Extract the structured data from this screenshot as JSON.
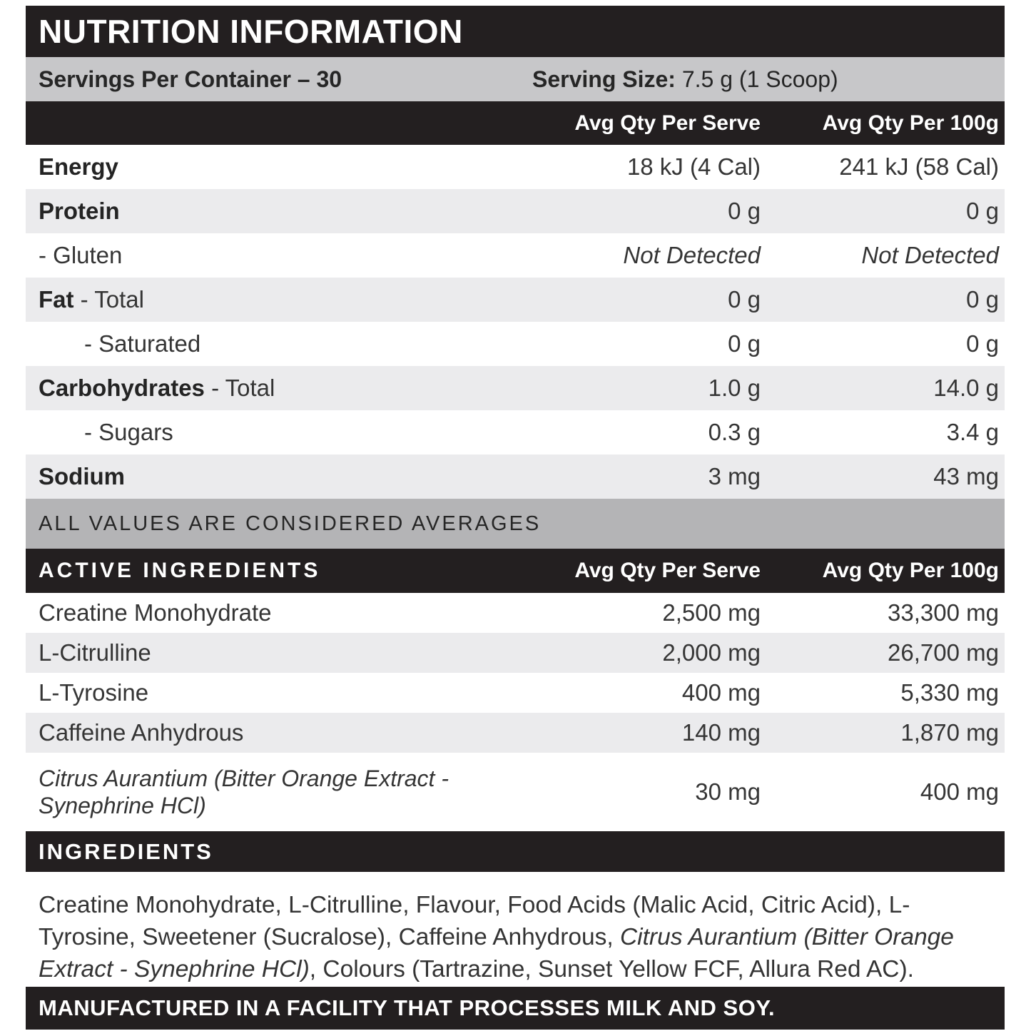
{
  "label": {
    "title": "NUTRITION INFORMATION",
    "servings_per_container": "Servings Per Container – 30",
    "serving_size_label": "Serving Size:",
    "serving_size_value": " 7.5 g (1 Scoop)",
    "columns": {
      "per_serve": "Avg Qty Per Serve",
      "per_100g": "Avg Qty Per 100g"
    },
    "nutrition_rows": [
      {
        "bold": "Energy",
        "light": "",
        "serve": "18 kJ (4 Cal)",
        "per100": "241 kJ (58 Cal)"
      },
      {
        "bold": "Protein",
        "light": "",
        "serve": "0 g",
        "per100": "0 g"
      },
      {
        "bold": "",
        "light": "- Gluten",
        "serve": "Not Detected",
        "per100": "Not Detected"
      },
      {
        "bold": "Fat",
        "light": " - Total",
        "serve": "0 g",
        "per100": "0 g"
      },
      {
        "bold": "",
        "light": "- Saturated",
        "serve": "0 g",
        "per100": "0 g"
      },
      {
        "bold": "Carbohydrates",
        "light": " - Total",
        "serve": "1.0 g",
        "per100": "14.0 g"
      },
      {
        "bold": "",
        "light": "- Sugars",
        "serve": "0.3 g",
        "per100": "3.4 g"
      },
      {
        "bold": "Sodium",
        "light": "",
        "serve": "3 mg",
        "per100": "43 mg"
      }
    ],
    "averages_note": "ALL VALUES ARE CONSIDERED AVERAGES",
    "active_section_title": "ACTIVE INGREDIENTS",
    "active_rows": [
      {
        "name": "Creatine Monohydrate",
        "serve": "2,500 mg",
        "per100": "33,300 mg"
      },
      {
        "name": "L-Citrulline",
        "serve": "2,000 mg",
        "per100": "26,700 mg"
      },
      {
        "name": "L-Tyrosine",
        "serve": "400 mg",
        "per100": "5,330 mg"
      },
      {
        "name": "Caffeine Anhydrous",
        "serve": "140 mg",
        "per100": "1,870 mg"
      },
      {
        "name": "Citrus Aurantium (Bitter Orange Extract - Synephrine HCl)",
        "serve": "30 mg",
        "per100": "400 mg"
      }
    ],
    "ingredients_section_title": "INGREDIENTS",
    "ingredients_text": {
      "part1": "Creatine Monohydrate, L-Citrulline, Flavour, Food Acids (Malic Acid, Citric Acid), L-Tyrosine, Sweetener (Sucralose), Caffeine Anhydrous, ",
      "italic_part": "Citrus Aurantium (Bitter Orange Extract - Synephrine HCl)",
      "part2": ", Colours (Tartrazine, Sunset Yellow FCF, Allura Red AC)."
    },
    "facility_note": "MANUFACTURED IN A FACILITY THAT PROCESSES MILK AND SOY.",
    "colors": {
      "bar_black": "#231f20",
      "serving_bar_gray": "#c7c7c9",
      "row_alt_gray": "#ebebed",
      "averages_bar_gray": "#b4b4b6"
    }
  }
}
